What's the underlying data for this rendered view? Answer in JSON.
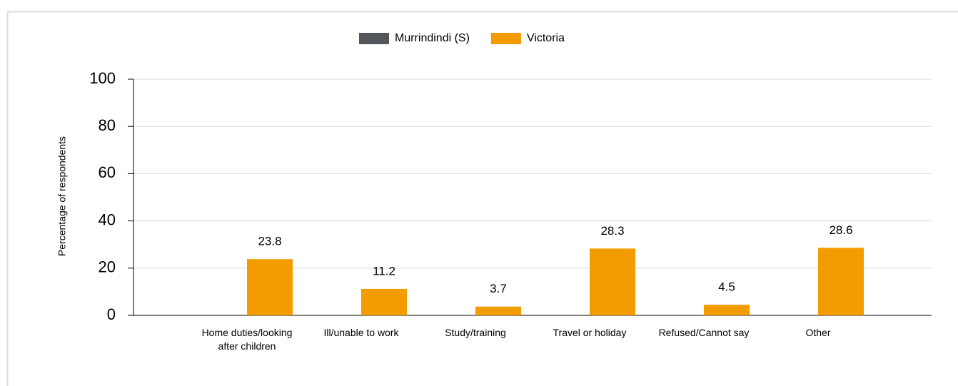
{
  "chart_data": {
    "type": "bar",
    "y_label": "Percentage of respondents",
    "categories": [
      "Home duties/looking after children",
      "Ill/unable to work",
      "Study/training",
      "Travel or holiday",
      "Refused/Cannot say",
      "Other"
    ],
    "series": [
      {
        "name": "Murrindindi (S)",
        "color": "#53565a",
        "values": [
          null,
          null,
          null,
          null,
          null,
          null
        ]
      },
      {
        "name": "Victoria",
        "color": "#f39c00",
        "values": [
          23.8,
          11.2,
          3.7,
          28.3,
          4.5,
          28.6
        ]
      }
    ],
    "ylim": [
      0,
      100
    ],
    "yticks": [
      0,
      20,
      40,
      60,
      80,
      100
    ],
    "grid": true,
    "legend": "top"
  }
}
